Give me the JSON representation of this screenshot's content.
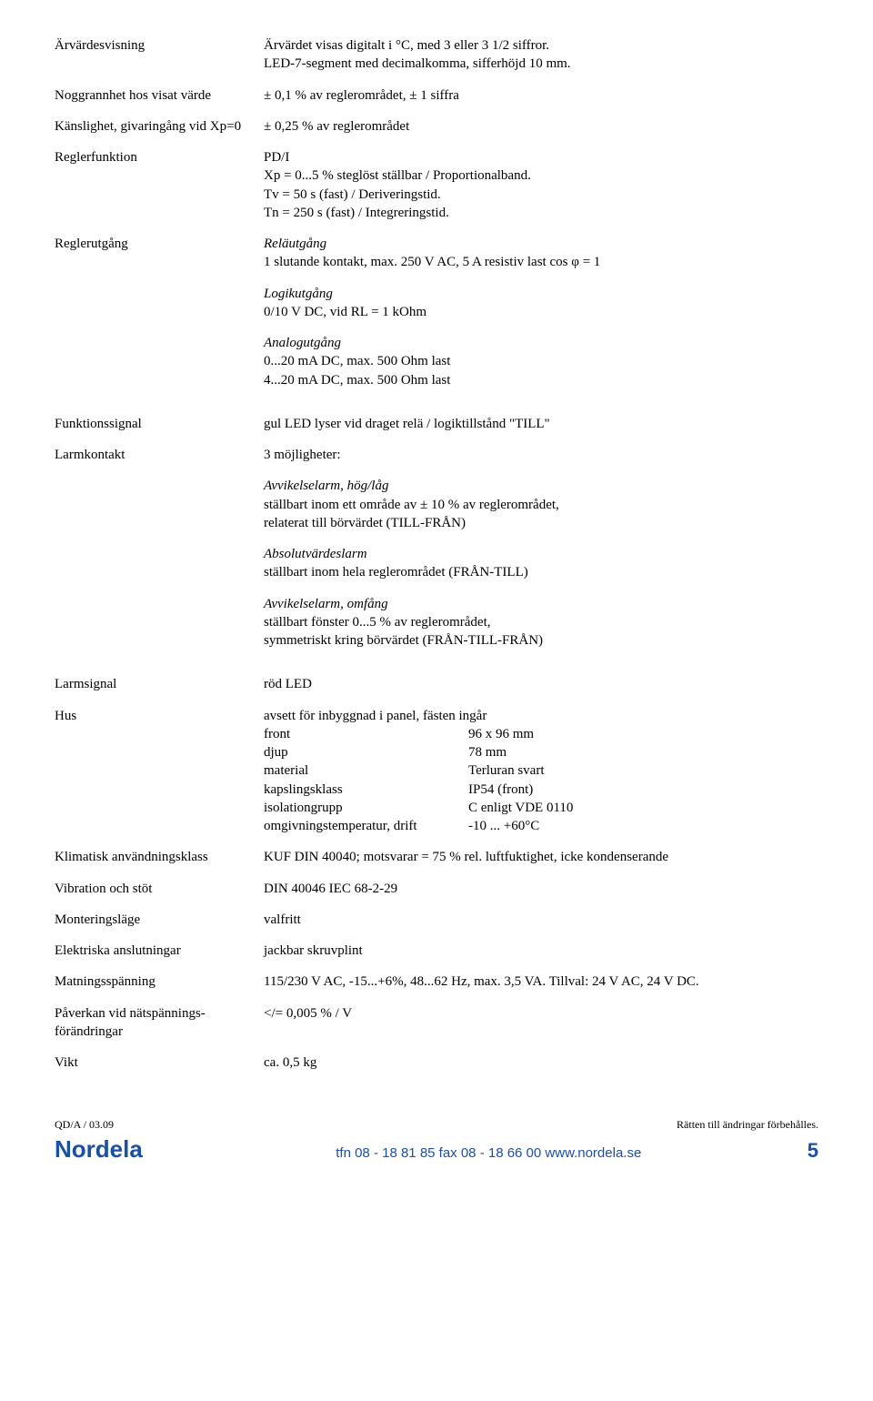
{
  "rows": {
    "arvardesvisning": {
      "label": "Ärvärdesvisning",
      "v1": "Ärvärdet visas digitalt i °C, med 3 eller 3 1/2 siffror.",
      "v2": "LED-7-segment med decimalkomma, sifferhöjd 10 mm."
    },
    "noggrannhet": {
      "label": "Noggrannhet hos visat värde",
      "v1": "± 0,1 % av reglerområdet, ± 1 siffra"
    },
    "kanslighet": {
      "label": "Känslighet, givaringång vid Xp=0",
      "v1": "± 0,25 % av reglerområdet"
    },
    "reglerfunktion": {
      "label": "Reglerfunktion",
      "v1": "PD/I",
      "v2": "Xp = 0...5 % steglöst ställbar / Proportionalband.",
      "v3": "Tv = 50 s (fast) / Deriveringstid.",
      "v4": "Tn = 250 s (fast) / Integreringstid."
    },
    "reglerutgang": {
      "label": "Reglerutgång",
      "relay_t": "Reläutgång",
      "relay_v": "1 slutande kontakt, max. 250 V AC, 5 A resistiv last cos φ = 1",
      "logic_t": "Logikutgång",
      "logic_v": "0/10 V DC, vid RL = 1 kOhm",
      "analog_t": "Analogutgång",
      "analog_v1": "0...20 mA DC, max. 500 Ohm last",
      "analog_v2": "4...20 mA DC, max. 500 Ohm last"
    },
    "funktionssignal": {
      "label": "Funktionssignal",
      "v1": "gul LED lyser vid draget relä / logiktillstånd \"TILL\""
    },
    "larmkontakt": {
      "label": "Larmkontakt",
      "v1": "3 möjligheter:",
      "a1t": "Avvikelselarm, hög/låg",
      "a1v1": "ställbart inom ett område av ± 10 % av reglerområdet,",
      "a1v2": "relaterat till börvärdet (TILL-FRÅN)",
      "a2t": "Absolutvärdeslarm",
      "a2v1": "ställbart inom hela reglerområdet (FRÅN-TILL)",
      "a3t": "Avvikelselarm, omfång",
      "a3v1": "ställbart fönster 0...5 % av reglerområdet,",
      "a3v2": "symmetriskt kring börvärdet (FRÅN-TILL-FRÅN)"
    },
    "larmsignal": {
      "label": "Larmsignal",
      "v1": "röd LED"
    },
    "hus": {
      "label": "Hus",
      "intro": "avsett för inbyggnad i panel, fästen ingår",
      "k1": "front",
      "v1": "96 x 96 mm",
      "k2": "djup",
      "v2": "78 mm",
      "k3": "material",
      "v3": "Terluran svart",
      "k4": "kapslingsklass",
      "v4": "IP54 (front)",
      "k5": "isolationgrupp",
      "v5": "C enligt VDE 0110",
      "k6": "omgivningstemperatur, drift",
      "v6": "-10 ... +60°C"
    },
    "klimatisk": {
      "label": "Klimatisk användningsklass",
      "v1": "KUF DIN 40040; motsvarar = 75 % rel. luftfuktighet, icke kondenserande"
    },
    "vibration": {
      "label": "Vibration och stöt",
      "v1": "DIN 40046 IEC 68-2-29"
    },
    "montering": {
      "label": "Monteringsläge",
      "v1": "valfritt"
    },
    "elektriska": {
      "label": "Elektriska anslutningar",
      "v1": "jackbar skruvplint"
    },
    "matning": {
      "label": "Matningsspänning",
      "v1": "115/230 V AC, -15...+6%, 48...62 Hz, max. 3,5 VA. Tillval: 24 V AC, 24 V DC."
    },
    "paverkan": {
      "label1": "Påverkan vid nätspännings-",
      "label2": "förändringar",
      "v1": "</= 0,005 % / V"
    },
    "vikt": {
      "label": "Vikt",
      "v1": "ca. 0,5 kg"
    }
  },
  "footer": {
    "left": "QD/A / 03.09",
    "right": "Rätten till ändringar förbehålles.",
    "brand": "Nordela",
    "contact": "tfn 08 - 18 81 85   fax 08 - 18 66 00   www.nordela.se",
    "page": "5"
  }
}
